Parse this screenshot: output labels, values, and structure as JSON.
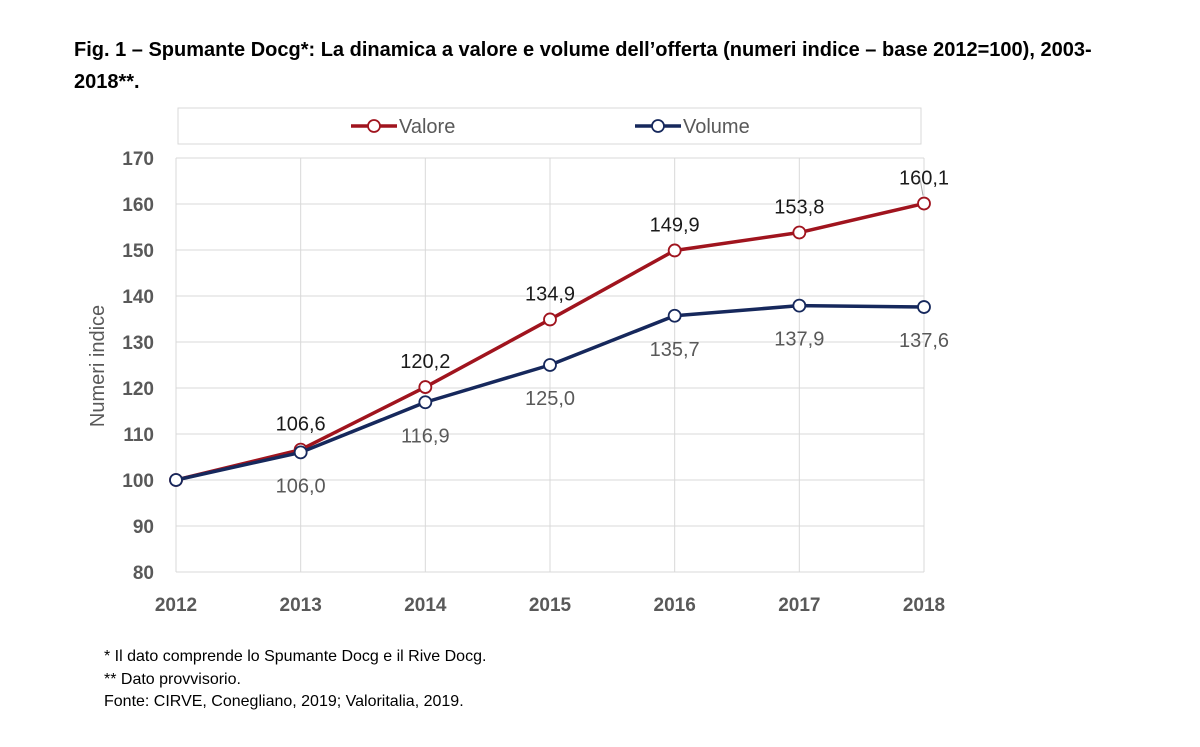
{
  "title": "Fig. 1 – Spumante Docg*: La dinamica a valore e volume dell’offerta (numeri indice – base 2012=100), 2003-2018**.",
  "footnotes": [
    "* Il dato comprende lo Spumante Docg e il Rive Docg.",
    "** Dato provvisorio.",
    "Fonte: CIRVE, Conegliano, 2019; Valoritalia, 2019."
  ],
  "chart_data": {
    "type": "line",
    "title": "",
    "xlabel": "",
    "ylabel": "Numeri indice",
    "categories": [
      "2012",
      "2013",
      "2014",
      "2015",
      "2016",
      "2017",
      "2018"
    ],
    "ylim": [
      80,
      170
    ],
    "yticks": [
      80,
      90,
      100,
      110,
      120,
      130,
      140,
      150,
      160,
      170
    ],
    "grid": true,
    "legend_position": "top",
    "series": [
      {
        "name": "Valore",
        "color": "#a0141e",
        "values": [
          100,
          106.6,
          120.2,
          134.9,
          149.9,
          153.8,
          160.1
        ],
        "data_labels": [
          "",
          "106,6",
          "120,2",
          "134,9",
          "149,9",
          "153,8",
          "160,1"
        ],
        "label_position": "above"
      },
      {
        "name": "Volume",
        "color": "#16285c",
        "values": [
          100,
          106.0,
          116.9,
          125.0,
          135.7,
          137.9,
          137.6
        ],
        "data_labels": [
          "",
          "106,0",
          "116,9",
          "125,0",
          "135,7",
          "137,9",
          "137,6"
        ],
        "label_position": "below"
      }
    ]
  }
}
